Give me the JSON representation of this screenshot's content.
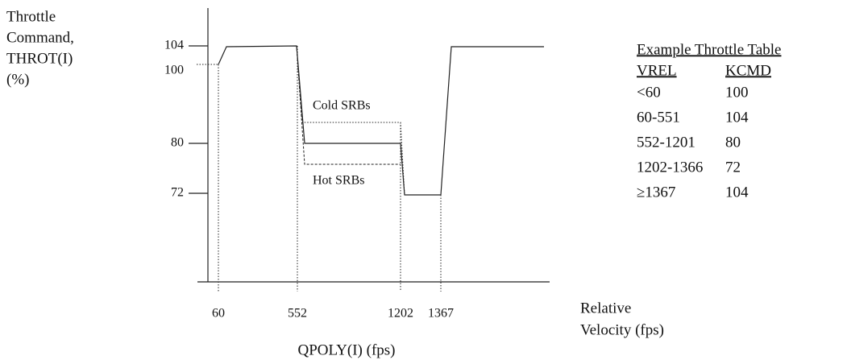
{
  "y_axis": {
    "title": [
      "Throttle",
      "Command,",
      "THROT(I)",
      "(%)"
    ],
    "ticks": [
      "104",
      "100",
      "80",
      "72"
    ]
  },
  "x_axis": {
    "ticks": [
      "60",
      "552",
      "1202",
      "1367"
    ],
    "title": "QPOLY(I) (fps)",
    "side_title": [
      "Relative",
      "Velocity (fps)"
    ]
  },
  "annotations": {
    "cold": "Cold SRBs",
    "hot": "Hot SRBs"
  },
  "table": {
    "title": "Example Throttle Table",
    "header": [
      "VREL",
      "KCMD"
    ],
    "rows": [
      [
        "<60",
        "100"
      ],
      [
        "60-551",
        "104"
      ],
      [
        "552-1201",
        "80"
      ],
      [
        "1202-1366",
        "72"
      ],
      [
        "≥1367",
        "104"
      ]
    ]
  }
}
